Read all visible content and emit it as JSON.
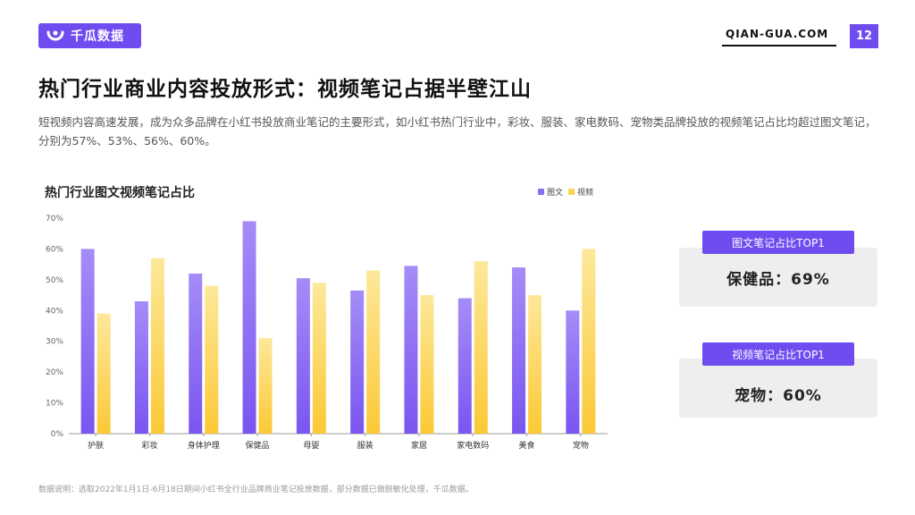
{
  "header": {
    "logo_text": "千瓜数据",
    "site_url": "QIAN-GUA.COM",
    "page_number": "12"
  },
  "title": "热门行业商业内容投放形式：视频笔记占据半壁江山",
  "description": "短视频内容高速发展，成为众多品牌在小红书投放商业笔记的主要形式，如小红书热门行业中，彩妆、服装、家电数码、宠物类品牌投放的视频笔记占比均超过图文笔记，分别为57%、53%、56%、60%。",
  "cards": [
    {
      "tag": "图文笔记占比TOP1",
      "value": "保健品：69%"
    },
    {
      "tag": "视频笔记占比TOP1",
      "value": "宠物：60%"
    }
  ],
  "footnote": "数据说明：选取2022年1月1日-6月18日期间小红书全行业品牌商业笔记投放数据，部分数据已做脱敏化处理，千瓜数据。",
  "colors": {
    "accent": "#6f4cf0",
    "image_text": "#8b6cf2",
    "video": "#fcd24f"
  },
  "chart_data": {
    "type": "bar",
    "title": "热门行业图文视频笔记占比",
    "categories": [
      "护肤",
      "彩妆",
      "身体护理",
      "保健品",
      "母婴",
      "服装",
      "家居",
      "家电数码",
      "美食",
      "宠物"
    ],
    "series": [
      {
        "name": "图文",
        "values": [
          60,
          43,
          52,
          69,
          50.5,
          46.5,
          54.5,
          44,
          54,
          40
        ]
      },
      {
        "name": "视频",
        "values": [
          39,
          57,
          48,
          31,
          49,
          53,
          45,
          56,
          45,
          60
        ]
      }
    ],
    "ylim": [
      0,
      70
    ],
    "yticks": [
      "0%",
      "10%",
      "20%",
      "30%",
      "40%",
      "50%",
      "60%",
      "70%"
    ],
    "legend_position": "top-right",
    "grid": false
  }
}
